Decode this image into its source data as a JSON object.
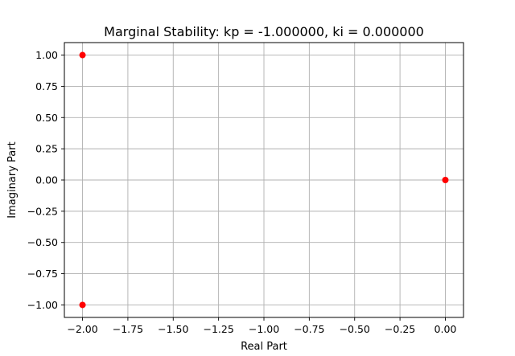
{
  "chart_data": {
    "type": "scatter",
    "title": "Marginal Stability: kp = -1.000000, ki = 0.000000",
    "xlabel": "Real Part",
    "ylabel": "Imaginary Part",
    "xlim": [
      -2.1,
      0.1
    ],
    "ylim": [
      -1.1,
      1.1
    ],
    "x_ticks": [
      -2.0,
      -1.75,
      -1.5,
      -1.25,
      -1.0,
      -0.75,
      -0.5,
      -0.25,
      0.0
    ],
    "x_tick_labels": [
      "−2.00",
      "−1.75",
      "−1.50",
      "−1.25",
      "−1.00",
      "−0.75",
      "−0.50",
      "−0.25",
      "0.00"
    ],
    "y_ticks": [
      1.0,
      0.75,
      0.5,
      0.25,
      0.0,
      -0.25,
      -0.5,
      -0.75,
      -1.0
    ],
    "y_tick_labels": [
      "1.00",
      "0.75",
      "0.50",
      "0.25",
      "0.00",
      "−0.25",
      "−0.50",
      "−0.75",
      "−1.00"
    ],
    "grid": true,
    "points": [
      {
        "x": -2.0,
        "y": 1.0
      },
      {
        "x": -2.0,
        "y": -1.0
      },
      {
        "x": 0.0,
        "y": 0.0
      }
    ],
    "marker_color": "#ff0000"
  }
}
